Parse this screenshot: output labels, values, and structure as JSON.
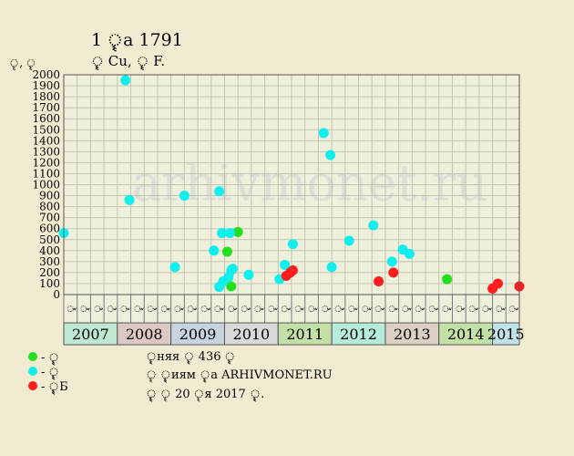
{
  "header": {
    "title": "1 ৄৄৄа 1791",
    "subtitle": "ৄৄৄ Cu, ৄৄৄ F."
  },
  "chart_data": {
    "type": "scatter",
    "ylabel": "ৄৄ, ৄৄ",
    "ylim": [
      0,
      2000
    ],
    "yticks": [
      0,
      100,
      200,
      300,
      400,
      500,
      600,
      700,
      800,
      900,
      1000,
      1100,
      1200,
      1300,
      1400,
      1500,
      1600,
      1700,
      1800,
      1900,
      2000
    ],
    "grid": true,
    "quarters": [
      "ৄৄ",
      "ৄৄ",
      "ৄৄ",
      "ৄৄ",
      "ৄৄ",
      "ৄৄ",
      "ৄৄ",
      "ৄৄ",
      "ৄৄ",
      "ৄৄ",
      "ৄৄ",
      "ৄৄ",
      "ৄৄ",
      "ৄৄ",
      "ৄৄ",
      "ৄৄ",
      "ৄৄ",
      "ৄৄ",
      "ৄৄ",
      "ৄৄ",
      "ৄৄ",
      "ৄৄ",
      "ৄৄ",
      "ৄৄ",
      "ৄৄ",
      "ৄৄ",
      "ৄৄ",
      "ৄৄ",
      "ৄৄ",
      "ৄৄ",
      "ৄৄ",
      "ৄৄ",
      "ৄৄ",
      "ৄৄ"
    ],
    "years": [
      {
        "label": "2007",
        "start": 0,
        "span": 4,
        "color": "#bfe9d3"
      },
      {
        "label": "2008",
        "start": 4,
        "span": 4,
        "color": "#ddc8c3"
      },
      {
        "label": "2009",
        "start": 8,
        "span": 4,
        "color": "#c8d3e0"
      },
      {
        "label": "2010",
        "start": 12,
        "span": 4,
        "color": "#d9d9d9"
      },
      {
        "label": "2011",
        "start": 16,
        "span": 4,
        "color": "#c3e0a6"
      },
      {
        "label": "2012",
        "start": 20,
        "span": 4,
        "color": "#b5ecdc"
      },
      {
        "label": "2013",
        "start": 24,
        "span": 4,
        "color": "#dccfc3"
      },
      {
        "label": "2014",
        "start": 28,
        "span": 4,
        "color": "#c3e0a6"
      },
      {
        "label": "2015",
        "start": 32,
        "span": 2,
        "color": "#bfe3e8"
      }
    ],
    "series": [
      {
        "name": "- ৄৄৄ",
        "color": "#22e01b",
        "points": [
          {
            "x": 12.2,
            "y": 390
          },
          {
            "x": 12.5,
            "y": 75
          },
          {
            "x": 13.0,
            "y": 570
          },
          {
            "x": 28.6,
            "y": 140
          }
        ]
      },
      {
        "name": "- ৄৄৄ",
        "color": "#11eeee",
        "points": [
          {
            "x": 0.0,
            "y": 560
          },
          {
            "x": 4.6,
            "y": 1950
          },
          {
            "x": 4.9,
            "y": 860
          },
          {
            "x": 8.3,
            "y": 250
          },
          {
            "x": 9.0,
            "y": 900
          },
          {
            "x": 11.2,
            "y": 400
          },
          {
            "x": 11.6,
            "y": 940
          },
          {
            "x": 11.8,
            "y": 560
          },
          {
            "x": 11.6,
            "y": 70
          },
          {
            "x": 11.9,
            "y": 120
          },
          {
            "x": 12.4,
            "y": 560
          },
          {
            "x": 12.3,
            "y": 160
          },
          {
            "x": 12.5,
            "y": 220
          },
          {
            "x": 12.6,
            "y": 235
          },
          {
            "x": 13.8,
            "y": 180
          },
          {
            "x": 16.1,
            "y": 140
          },
          {
            "x": 16.5,
            "y": 270
          },
          {
            "x": 17.1,
            "y": 460
          },
          {
            "x": 19.4,
            "y": 1470
          },
          {
            "x": 19.9,
            "y": 1270
          },
          {
            "x": 20.0,
            "y": 250
          },
          {
            "x": 21.3,
            "y": 490
          },
          {
            "x": 23.1,
            "y": 630
          },
          {
            "x": 24.5,
            "y": 300
          },
          {
            "x": 25.3,
            "y": 410
          },
          {
            "x": 25.8,
            "y": 370
          }
        ]
      },
      {
        "name": "- ৄৄৄৄৄБ",
        "color": "#ff1d1d",
        "points": [
          {
            "x": 16.6,
            "y": 170
          },
          {
            "x": 16.9,
            "y": 200
          },
          {
            "x": 17.1,
            "y": 220
          },
          {
            "x": 23.5,
            "y": 120
          },
          {
            "x": 24.6,
            "y": 200
          },
          {
            "x": 32.0,
            "y": 55
          },
          {
            "x": 32.4,
            "y": 100
          },
          {
            "x": 34.0,
            "y": 75
          }
        ]
      }
    ],
    "watermark": "arhivmonet.ru"
  },
  "notes": {
    "line1": "ৄৄняя ৄৄ 436 ৄৄ",
    "line2": "ৄ ৄৄৄиям ৄৄа ARHIVMONET.RU",
    "line3": "ৄৄৄ ৄ 20 ৄя 2017 ৄৄ."
  }
}
